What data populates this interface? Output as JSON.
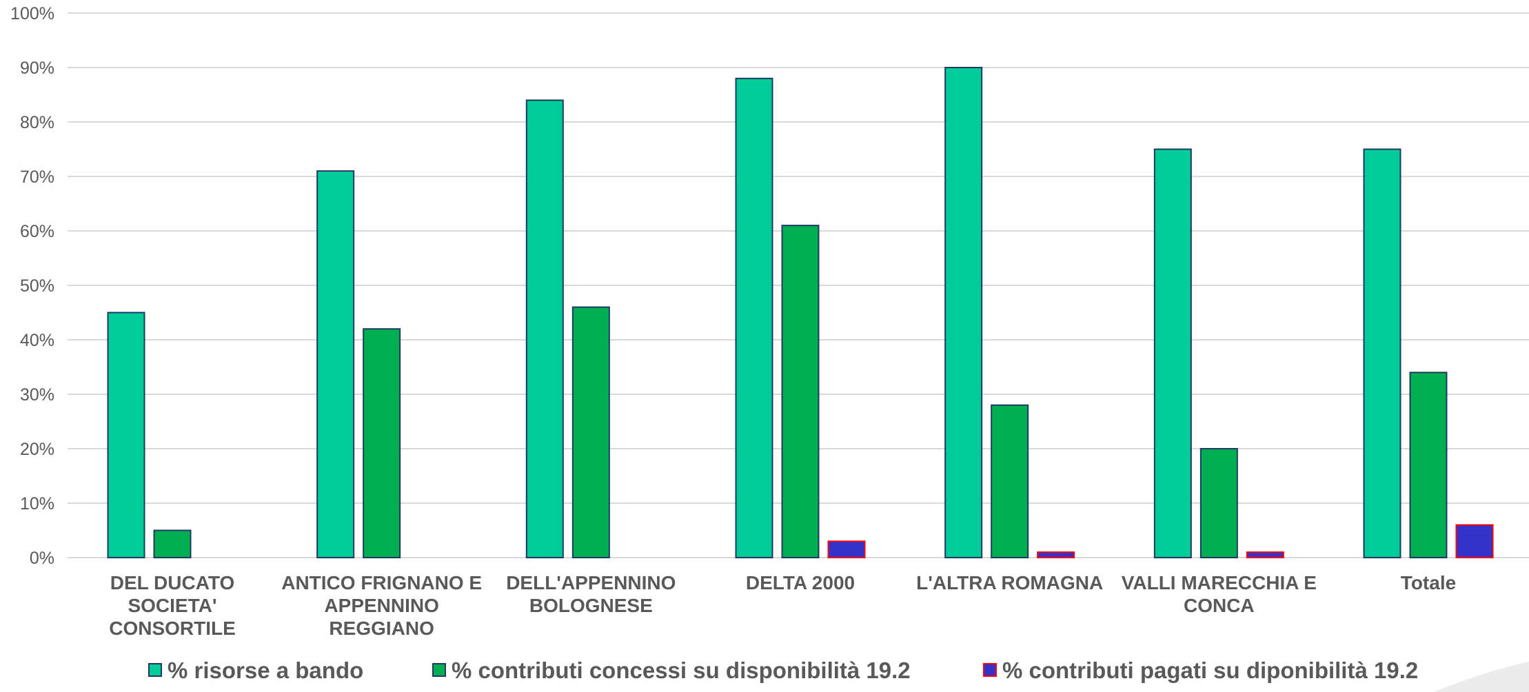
{
  "chart_data": {
    "type": "bar",
    "title": "",
    "xlabel": "",
    "ylabel": "",
    "ylim": [
      0,
      100
    ],
    "y_ticks": [
      "0%",
      "10%",
      "20%",
      "30%",
      "40%",
      "50%",
      "60%",
      "70%",
      "80%",
      "90%",
      "100%"
    ],
    "grid": true,
    "legend_position": "bottom",
    "categories": [
      [
        "DEL DUCATO",
        "SOCIETA'",
        "CONSORTILE"
      ],
      [
        "ANTICO FRIGNANO E",
        "APPENNINO",
        "REGGIANO"
      ],
      [
        "DELL'APPENNINO",
        "BOLOGNESE"
      ],
      [
        "DELTA 2000"
      ],
      [
        "L'ALTRA ROMAGNA"
      ],
      [
        "VALLI MARECCHIA E",
        "CONCA"
      ],
      [
        "Totale"
      ]
    ],
    "series": [
      {
        "name": "% risorse a bando",
        "color": "#00CC99",
        "border": "#1F3864",
        "values": [
          45,
          71,
          84,
          88,
          90,
          75,
          75
        ]
      },
      {
        "name": "% contributi concessi su disponibilità 19.2",
        "color": "#00B050",
        "border": "#1F3864",
        "values": [
          5,
          42,
          46,
          61,
          28,
          20,
          34
        ]
      },
      {
        "name": "% contributi pagati su diponibilità 19.2",
        "color": "#3333CC",
        "border": "#FF0000",
        "values": [
          0,
          0,
          0,
          3,
          1,
          1,
          6
        ]
      }
    ]
  }
}
